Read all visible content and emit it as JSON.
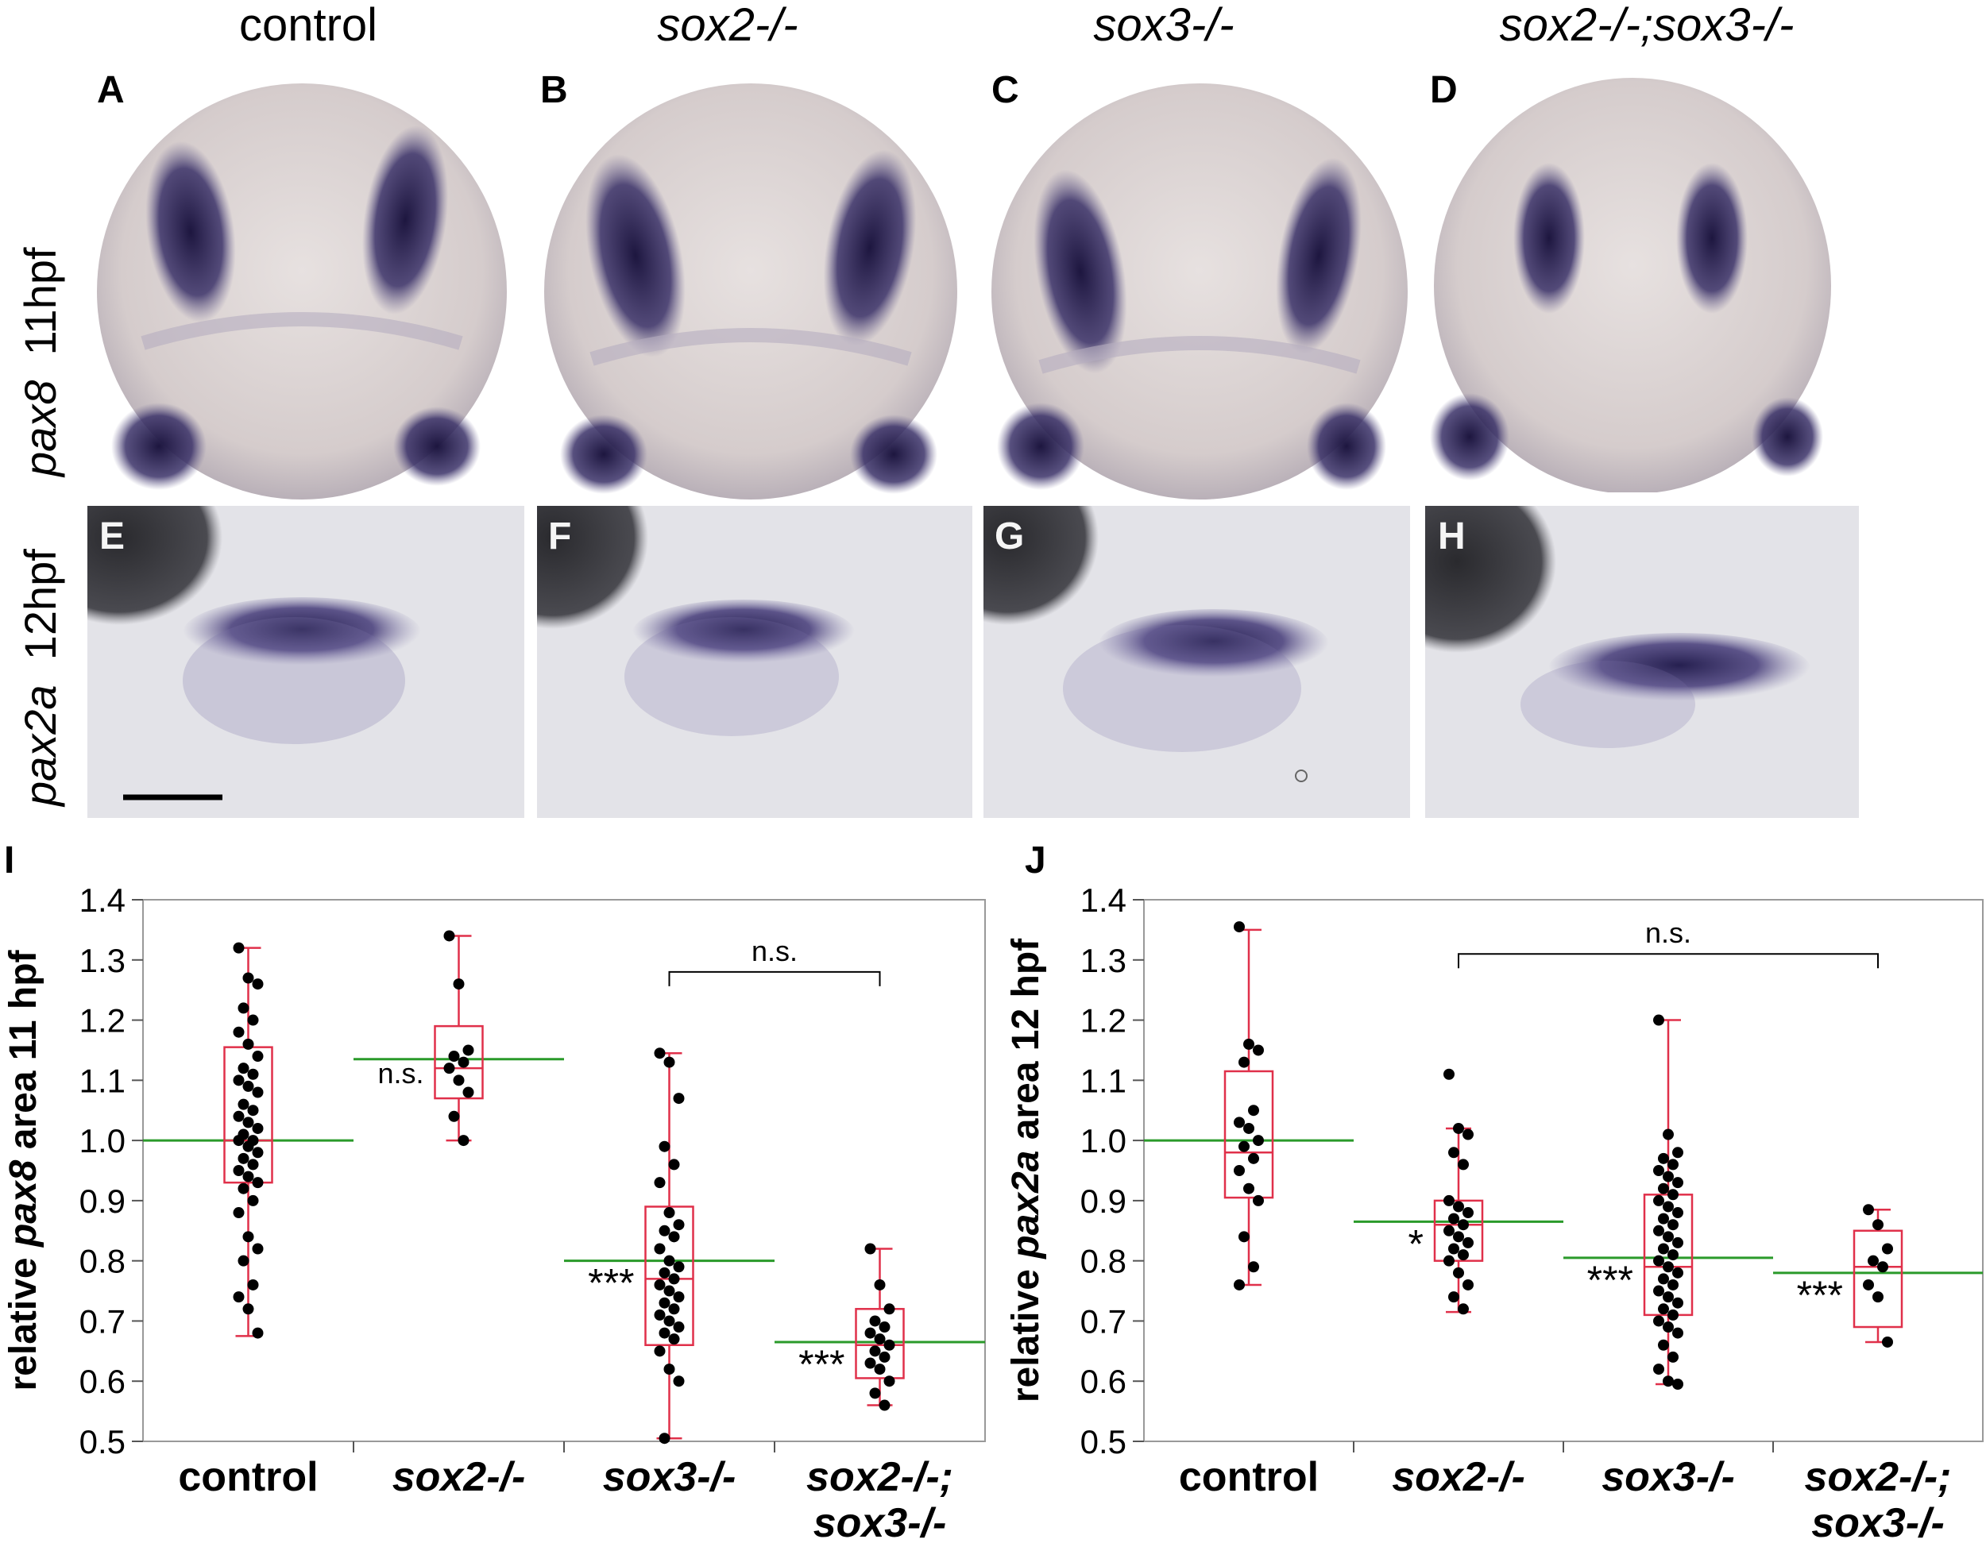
{
  "columns": [
    "control",
    "sox2-/-",
    "sox3-/-",
    "sox2-/-;sox3-/-"
  ],
  "row1": {
    "gene": "pax8",
    "stage": "11hpf"
  },
  "row2": {
    "gene": "pax2a",
    "stage": "12hpf"
  },
  "panels": {
    "top": [
      "A",
      "B",
      "C",
      "D"
    ],
    "bottom": [
      "E",
      "F",
      "G",
      "H"
    ],
    "charts": [
      "I",
      "J"
    ]
  },
  "colors": {
    "box": "#e0304a",
    "mean": "#2a9a2a",
    "stain": "#2c2456",
    "embryo": "#d8d0cf",
    "point": "#000000"
  },
  "chart_data": [
    {
      "panel": "I",
      "type": "box",
      "ylabel_prefix": "relative ",
      "ylabel_gene": "pax8",
      "ylabel_suffix": " area 11 hpf",
      "ylim": [
        0.5,
        1.4
      ],
      "yticks": [
        "0.5",
        "0.6",
        "0.7",
        "0.8",
        "0.9",
        "1.0",
        "1.1",
        "1.2",
        "1.3",
        "1.4"
      ],
      "categories": [
        [
          "control"
        ],
        [
          "sox2-/-"
        ],
        [
          "sox3-/-"
        ],
        [
          "sox2-/-;",
          "sox3-/-"
        ]
      ],
      "boxes": [
        {
          "min": 0.675,
          "q1": 0.93,
          "median": 1.0,
          "q3": 1.155,
          "max": 1.32,
          "mean": 1.0,
          "sig": "",
          "points": [
            1.32,
            1.27,
            1.26,
            1.22,
            1.2,
            1.18,
            1.16,
            1.14,
            1.12,
            1.11,
            1.1,
            1.09,
            1.08,
            1.06,
            1.05,
            1.04,
            1.03,
            1.02,
            1.01,
            1.0,
            1.0,
            0.99,
            0.98,
            0.97,
            0.96,
            0.95,
            0.94,
            0.93,
            0.92,
            0.9,
            0.88,
            0.84,
            0.82,
            0.8,
            0.76,
            0.74,
            0.72,
            0.68
          ]
        },
        {
          "min": 1.0,
          "q1": 1.07,
          "median": 1.12,
          "q3": 1.19,
          "max": 1.34,
          "mean": 1.135,
          "sig": "n.s.",
          "points": [
            1.34,
            1.26,
            1.15,
            1.14,
            1.13,
            1.12,
            1.1,
            1.08,
            1.04,
            1.0
          ]
        },
        {
          "min": 0.505,
          "q1": 0.66,
          "median": 0.77,
          "q3": 0.89,
          "max": 1.145,
          "mean": 0.8,
          "sig": "***",
          "points": [
            1.145,
            1.13,
            1.07,
            0.99,
            0.96,
            0.93,
            0.88,
            0.86,
            0.85,
            0.84,
            0.82,
            0.8,
            0.79,
            0.78,
            0.77,
            0.76,
            0.75,
            0.74,
            0.73,
            0.72,
            0.71,
            0.7,
            0.69,
            0.68,
            0.67,
            0.65,
            0.62,
            0.6,
            0.505
          ]
        },
        {
          "min": 0.56,
          "q1": 0.605,
          "median": 0.66,
          "q3": 0.72,
          "max": 0.82,
          "mean": 0.665,
          "sig": "***",
          "points": [
            0.82,
            0.76,
            0.72,
            0.7,
            0.69,
            0.68,
            0.67,
            0.66,
            0.65,
            0.64,
            0.63,
            0.62,
            0.6,
            0.58,
            0.56
          ]
        }
      ],
      "bracket": {
        "from": 2,
        "to": 3,
        "label": "n.s.",
        "y": 1.28
      }
    },
    {
      "panel": "J",
      "type": "box",
      "ylabel_prefix": "relative ",
      "ylabel_gene": "pax2a",
      "ylabel_suffix": " area 12 hpf",
      "ylim": [
        0.5,
        1.4
      ],
      "yticks": [
        "0.5",
        "0.6",
        "0.7",
        "0.8",
        "0.9",
        "1.0",
        "1.1",
        "1.2",
        "1.3",
        "1.4"
      ],
      "categories": [
        [
          "control"
        ],
        [
          "sox2-/-"
        ],
        [
          "sox3-/-"
        ],
        [
          "sox2-/-;",
          "sox3-/-"
        ]
      ],
      "boxes": [
        {
          "min": 0.76,
          "q1": 0.905,
          "median": 0.98,
          "q3": 1.115,
          "max": 1.35,
          "mean": 1.0,
          "sig": "",
          "points": [
            1.355,
            1.16,
            1.15,
            1.13,
            1.05,
            1.03,
            1.02,
            1.0,
            0.99,
            0.97,
            0.95,
            0.92,
            0.9,
            0.84,
            0.79,
            0.76
          ]
        },
        {
          "min": 0.715,
          "q1": 0.8,
          "median": 0.86,
          "q3": 0.9,
          "max": 1.02,
          "mean": 0.865,
          "sig": "*",
          "points": [
            1.11,
            1.02,
            1.01,
            0.98,
            0.96,
            0.9,
            0.89,
            0.88,
            0.87,
            0.86,
            0.85,
            0.84,
            0.83,
            0.82,
            0.81,
            0.8,
            0.78,
            0.76,
            0.74,
            0.72
          ]
        },
        {
          "min": 0.595,
          "q1": 0.71,
          "median": 0.79,
          "q3": 0.91,
          "max": 1.2,
          "mean": 0.805,
          "sig": "***",
          "points": [
            1.2,
            1.01,
            0.98,
            0.97,
            0.96,
            0.95,
            0.94,
            0.93,
            0.92,
            0.91,
            0.9,
            0.89,
            0.88,
            0.87,
            0.86,
            0.85,
            0.84,
            0.83,
            0.82,
            0.81,
            0.8,
            0.79,
            0.78,
            0.77,
            0.76,
            0.75,
            0.74,
            0.73,
            0.72,
            0.71,
            0.7,
            0.69,
            0.68,
            0.66,
            0.64,
            0.62,
            0.6,
            0.595
          ]
        },
        {
          "min": 0.665,
          "q1": 0.69,
          "median": 0.79,
          "q3": 0.85,
          "max": 0.885,
          "mean": 0.78,
          "sig": "***",
          "points": [
            0.885,
            0.86,
            0.82,
            0.8,
            0.79,
            0.76,
            0.74,
            0.665
          ]
        }
      ],
      "bracket": {
        "from": 1,
        "to": 3,
        "label": "n.s.",
        "y": 1.31
      }
    }
  ]
}
